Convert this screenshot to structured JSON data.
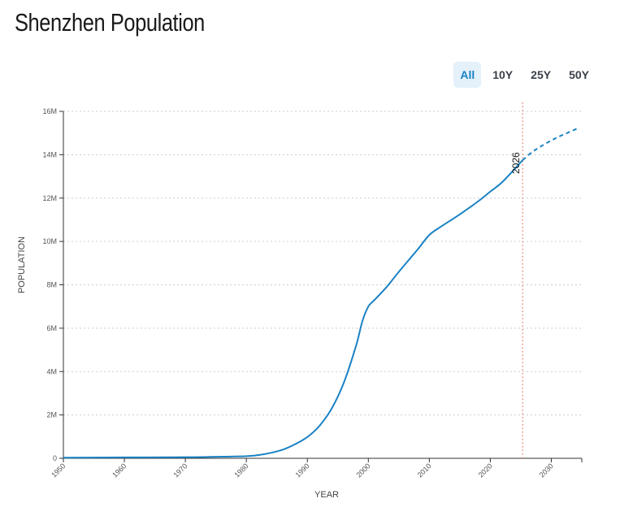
{
  "title": "Shenzhen Population",
  "range_buttons": [
    {
      "label": "All",
      "active": true
    },
    {
      "label": "10Y",
      "active": false
    },
    {
      "label": "25Y",
      "active": false
    },
    {
      "label": "50Y",
      "active": false
    }
  ],
  "chart_data": {
    "type": "line",
    "title": "",
    "xlabel": "YEAR",
    "ylabel": "POPULATION",
    "xlim": [
      1950,
      2035
    ],
    "ylim": [
      0,
      16000000
    ],
    "grid": "horizontal dotted",
    "x_ticks": [
      "1950",
      "1960",
      "1970",
      "1980",
      "1990",
      "2000",
      "2010",
      "2020",
      "2030"
    ],
    "y_ticks": [
      "0",
      "2M",
      "4M",
      "6M",
      "8M",
      "10M",
      "12M",
      "14M",
      "16M"
    ],
    "line_color": "#1a82c4",
    "marker_line": {
      "year": 2025.3,
      "label": "2026",
      "color": "#f08a7a"
    },
    "series": [
      {
        "style": "solid",
        "x": [
          1950,
          1960,
          1970,
          1975,
          1980,
          1982,
          1984,
          1986,
          1988,
          1990,
          1992,
          1994,
          1996,
          1998,
          1999,
          2000,
          2001,
          2003,
          2005,
          2008,
          2010,
          2012,
          2015,
          2018,
          2020,
          2022,
          2025.3
        ],
        "y": [
          30000,
          40000,
          50000,
          70000,
          100000,
          150000,
          250000,
          400000,
          650000,
          980000,
          1500000,
          2300000,
          3500000,
          5200000,
          6300000,
          7000000,
          7300000,
          7900000,
          8600000,
          9600000,
          10300000,
          10700000,
          11250000,
          11850000,
          12300000,
          12750000,
          13750000
        ]
      },
      {
        "style": "dashed",
        "x": [
          2025.3,
          2027,
          2029,
          2031,
          2033,
          2034.2
        ],
        "y": [
          13750000,
          14150000,
          14500000,
          14800000,
          15050000,
          15200000
        ]
      }
    ]
  }
}
